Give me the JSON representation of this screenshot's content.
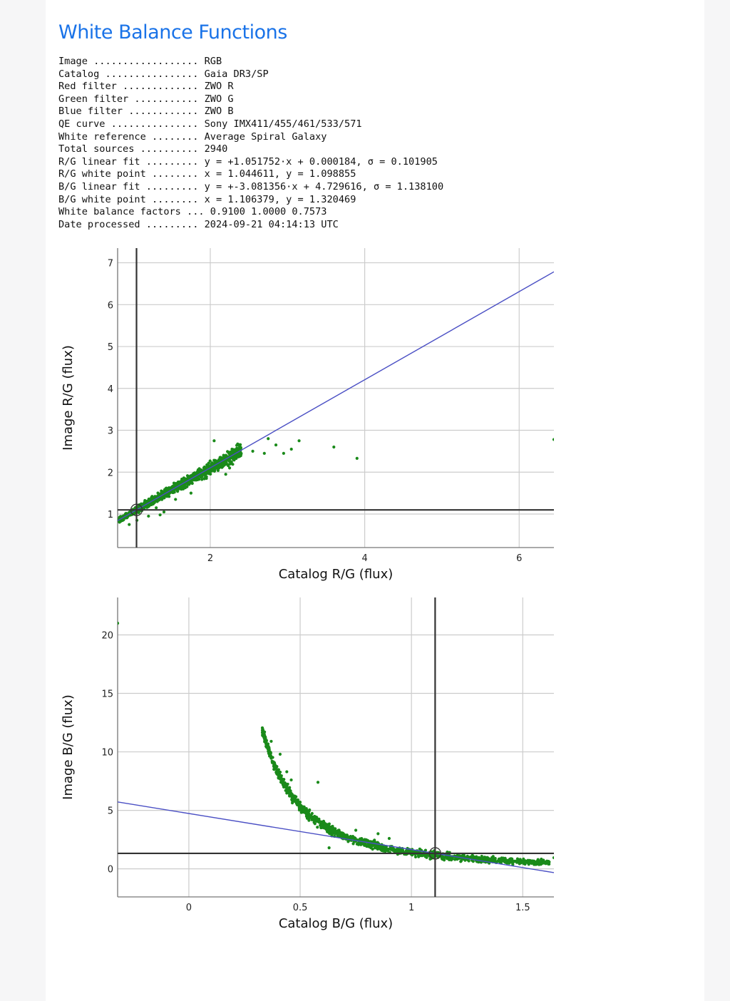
{
  "report": {
    "title": "White Balance Functions",
    "info": [
      {
        "key": "Image ..................",
        "value": "RGB"
      },
      {
        "key": "Catalog ................",
        "value": "Gaia DR3/SP"
      },
      {
        "key": "Red filter .............",
        "value": "ZWO R"
      },
      {
        "key": "Green filter ...........",
        "value": "ZWO G"
      },
      {
        "key": "Blue filter ............",
        "value": "ZWO B"
      },
      {
        "key": "QE curve ...............",
        "value": "Sony IMX411/455/461/533/571"
      },
      {
        "key": "White reference ........",
        "value": "Average Spiral Galaxy"
      },
      {
        "key": "Total sources ..........",
        "value": "2940"
      },
      {
        "key": "R/G linear fit .........",
        "value": "y = +1.051752·x + 0.000184, σ = 0.101905"
      },
      {
        "key": "R/G white point ........",
        "value": "x = 1.044611, y = 1.098855"
      },
      {
        "key": "B/G linear fit .........",
        "value": "y = +-3.081356·x + 4.729616, σ = 1.138100"
      },
      {
        "key": "B/G white point ........",
        "value": "x = 1.106379, y = 1.320469"
      },
      {
        "key": "White balance factors ...",
        "value": "0.9100 1.0000 0.7573"
      },
      {
        "key": "Date processed .........",
        "value": "2024-09-21 04:14:13 UTC"
      }
    ]
  },
  "colors": {
    "points": "#1a8a1a",
    "fit_line": "#4a4fc4",
    "white_point_lines": "#333333",
    "grid": "#cccccc"
  },
  "chart_data": [
    {
      "type": "scatter",
      "xlabel": "Catalog R/G (flux)",
      "ylabel": "Image R/G (flux)",
      "xlim": [
        0.8,
        6.45
      ],
      "ylim": [
        0.2,
        7.35
      ],
      "x_ticks": [
        2,
        4,
        6
      ],
      "y_ticks": [
        1,
        2,
        3,
        4,
        5,
        6,
        7
      ],
      "grid": true,
      "fit": {
        "slope": 1.051752,
        "intercept": 0.000184
      },
      "white_point": {
        "x": 1.044611,
        "y": 1.098855
      },
      "cluster": {
        "x_start": 0.82,
        "x_end": 2.4,
        "slope": 1.05,
        "intercept": 0.0,
        "spread": 0.07
      },
      "outliers": [
        [
          2.75,
          2.8
        ],
        [
          2.85,
          2.65
        ],
        [
          2.95,
          2.45
        ],
        [
          3.05,
          2.55
        ],
        [
          3.15,
          2.75
        ],
        [
          2.7,
          2.45
        ],
        [
          2.55,
          2.5
        ],
        [
          3.6,
          2.6
        ],
        [
          3.9,
          2.33
        ],
        [
          2.3,
          2.3
        ],
        [
          2.25,
          2.1
        ],
        [
          2.4,
          2.45
        ],
        [
          2.05,
          2.75
        ],
        [
          2.2,
          1.95
        ],
        [
          1.95,
          1.85
        ],
        [
          1.65,
          1.6
        ],
        [
          1.75,
          1.5
        ],
        [
          1.55,
          1.35
        ],
        [
          1.35,
          0.98
        ],
        [
          1.4,
          1.05
        ],
        [
          1.2,
          0.95
        ],
        [
          1.3,
          1.15
        ],
        [
          0.95,
          0.75
        ],
        [
          1.05,
          0.85
        ],
        [
          6.45,
          2.78
        ]
      ]
    },
    {
      "type": "scatter",
      "xlabel": "Catalog B/G (flux)",
      "ylabel": "Image B/G (flux)",
      "xlim": [
        -0.32,
        1.64
      ],
      "ylim": [
        -2.4,
        23.2
      ],
      "x_ticks": [
        0,
        0.5,
        1,
        1.5
      ],
      "y_ticks": [
        0,
        5,
        10,
        15,
        20
      ],
      "grid": true,
      "fit": {
        "slope": -3.081356,
        "intercept": 4.729616
      },
      "white_point": {
        "x": 1.106379,
        "y": 1.320469
      },
      "cluster": {
        "x_start": 0.33,
        "x_end": 1.62,
        "curve": "hyperbolic",
        "spread": 0.35
      },
      "outliers": [
        [
          -0.32,
          21.0
        ],
        [
          0.58,
          7.4
        ],
        [
          0.63,
          1.8
        ],
        [
          0.34,
          11.7
        ],
        [
          0.37,
          10.9
        ],
        [
          0.41,
          9.8
        ],
        [
          0.44,
          8.3
        ],
        [
          0.46,
          7.6
        ],
        [
          1.48,
          0.75
        ],
        [
          1.53,
          0.72
        ],
        [
          1.57,
          0.68
        ],
        [
          1.64,
          0.95
        ],
        [
          0.85,
          3.0
        ],
        [
          0.9,
          2.6
        ],
        [
          0.75,
          3.3
        ]
      ]
    }
  ]
}
